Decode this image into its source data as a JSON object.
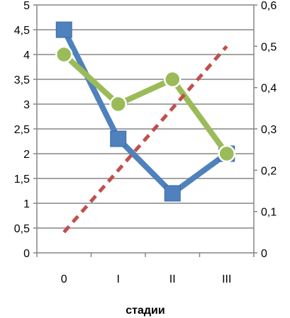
{
  "chart_data": {
    "type": "line",
    "title": "",
    "categories": [
      "0",
      "I",
      "II",
      "III"
    ],
    "xlabel": "стадии",
    "ylabel": "",
    "ylim": [
      0,
      5
    ],
    "y_ticks": [
      "0",
      "0,5",
      "1",
      "1,5",
      "2",
      "2,5",
      "3",
      "3,5",
      "4",
      "4,5",
      "5"
    ],
    "y2lim": [
      0,
      0.6
    ],
    "y2_ticks": [
      "0",
      "0,1",
      "0,2",
      "0,3",
      "0,4",
      "0,5",
      "0,6"
    ],
    "grid": true,
    "legend": "none",
    "series": [
      {
        "axis": "left",
        "marker": "square",
        "line_style": "solid",
        "color": "#4f81bd",
        "values": [
          4.5,
          2.3,
          1.2,
          2.0
        ]
      },
      {
        "axis": "left",
        "marker": "circle",
        "line_style": "solid",
        "color": "#9bbb59",
        "values": [
          4.0,
          3.0,
          3.5,
          2.0
        ]
      },
      {
        "axis": "right",
        "marker": "none",
        "line_style": "dashed",
        "color": "#c0504d",
        "values": [
          0.05,
          0.2,
          0.35,
          0.5
        ]
      }
    ]
  }
}
